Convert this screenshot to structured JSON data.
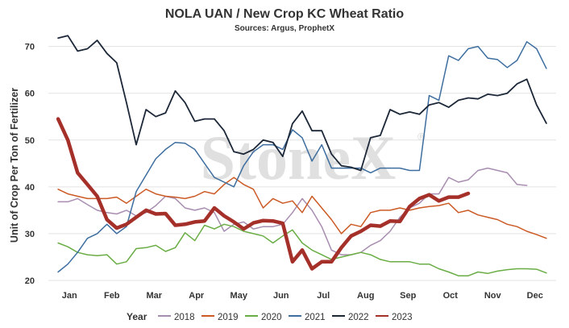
{
  "chart_data": {
    "type": "line",
    "title": "NOLA UAN / New Crop KC Wheat Ratio",
    "subtitle": "Sources: Argus, ProphetX",
    "xlabel": "",
    "ylabel": "Unit of Crop Per Ton of Fertilizer",
    "x_ticks": [
      "Jan",
      "Feb",
      "Mar",
      "Apr",
      "May",
      "Jun",
      "Jul",
      "Aug",
      "Sep",
      "Oct",
      "Nov",
      "Dec"
    ],
    "y_ticks": [
      20,
      30,
      40,
      50,
      60,
      70
    ],
    "xlim": [
      0,
      52
    ],
    "ylim": [
      20,
      72
    ],
    "grid": true,
    "legend_title": "Year",
    "legend_position": "bottom",
    "watermark": "StoneX",
    "x_unit": "week of year",
    "series": [
      {
        "name": "2018",
        "color": "#a88db0",
        "width": 1.5,
        "points": [
          [
            1,
            36.8
          ],
          [
            2,
            36.8
          ],
          [
            3,
            37.5
          ],
          [
            4,
            36.2
          ],
          [
            5,
            35.0
          ],
          [
            6,
            34.5
          ],
          [
            7,
            34.2
          ],
          [
            8,
            35.0
          ],
          [
            9,
            33.8
          ],
          [
            10,
            34.5
          ],
          [
            11,
            36.0
          ],
          [
            12,
            38.0
          ],
          [
            13,
            37.5
          ],
          [
            14,
            35.5
          ],
          [
            15,
            35.0
          ],
          [
            16,
            35.5
          ],
          [
            17,
            34.5
          ],
          [
            18,
            30.5
          ],
          [
            19,
            32.0
          ],
          [
            20,
            32.5
          ],
          [
            21,
            31.0
          ],
          [
            22,
            31.5
          ],
          [
            23,
            31.5
          ],
          [
            24,
            32.0
          ],
          [
            25,
            34.5
          ],
          [
            26,
            37.5
          ],
          [
            27,
            35.0
          ],
          [
            28,
            31.5
          ],
          [
            29,
            26.5
          ],
          [
            30,
            25.5
          ],
          [
            31,
            25.5
          ],
          [
            32,
            26.0
          ],
          [
            33,
            27.5
          ],
          [
            34,
            28.5
          ],
          [
            35,
            30.5
          ],
          [
            36,
            33.5
          ],
          [
            37,
            35.5
          ],
          [
            38,
            36.5
          ],
          [
            39,
            38.5
          ],
          [
            40,
            38.5
          ],
          [
            41,
            42.0
          ],
          [
            42,
            41.0
          ],
          [
            43,
            41.5
          ],
          [
            44,
            43.5
          ],
          [
            45,
            44.0
          ],
          [
            46,
            43.5
          ],
          [
            47,
            43.0
          ],
          [
            48,
            40.5
          ],
          [
            49,
            40.3
          ]
        ]
      },
      {
        "name": "2019",
        "color": "#cc5a25",
        "width": 1.5,
        "points": [
          [
            1,
            39.5
          ],
          [
            2,
            38.5
          ],
          [
            3,
            38.0
          ],
          [
            4,
            37.5
          ],
          [
            5,
            37.5
          ],
          [
            6,
            37.5
          ],
          [
            7,
            37.8
          ],
          [
            8,
            36.5
          ],
          [
            9,
            38.0
          ],
          [
            10,
            39.5
          ],
          [
            11,
            38.5
          ],
          [
            12,
            38.0
          ],
          [
            13,
            37.8
          ],
          [
            14,
            37.5
          ],
          [
            15,
            38.0
          ],
          [
            16,
            39.0
          ],
          [
            17,
            38.5
          ],
          [
            18,
            40.5
          ],
          [
            19,
            42.0
          ],
          [
            20,
            40.5
          ],
          [
            21,
            39.5
          ],
          [
            22,
            35.5
          ],
          [
            23,
            37.5
          ],
          [
            24,
            36.5
          ],
          [
            25,
            37.0
          ],
          [
            26,
            34.5
          ],
          [
            27,
            38.0
          ],
          [
            28,
            35.5
          ],
          [
            29,
            33.0
          ],
          [
            30,
            30.0
          ],
          [
            31,
            32.0
          ],
          [
            32,
            31.5
          ],
          [
            33,
            34.5
          ],
          [
            34,
            35.0
          ],
          [
            35,
            35.0
          ],
          [
            36,
            35.5
          ],
          [
            37,
            35.0
          ],
          [
            38,
            35.5
          ],
          [
            39,
            35.8
          ],
          [
            40,
            36.0
          ],
          [
            41,
            36.5
          ],
          [
            42,
            34.5
          ],
          [
            43,
            35.0
          ],
          [
            44,
            34.0
          ],
          [
            45,
            33.5
          ],
          [
            46,
            33.0
          ],
          [
            47,
            32.0
          ],
          [
            48,
            31.5
          ],
          [
            49,
            30.5
          ],
          [
            50,
            29.8
          ],
          [
            51,
            29.0
          ]
        ]
      },
      {
        "name": "2020",
        "color": "#6aad45",
        "width": 1.5,
        "points": [
          [
            1,
            28.0
          ],
          [
            2,
            27.2
          ],
          [
            3,
            26.0
          ],
          [
            4,
            25.5
          ],
          [
            5,
            25.3
          ],
          [
            6,
            25.5
          ],
          [
            7,
            23.5
          ],
          [
            8,
            24.0
          ],
          [
            9,
            26.8
          ],
          [
            10,
            27.0
          ],
          [
            11,
            27.5
          ],
          [
            12,
            26.2
          ],
          [
            13,
            27.0
          ],
          [
            14,
            30.2
          ],
          [
            15,
            28.5
          ],
          [
            16,
            31.8
          ],
          [
            17,
            31.0
          ],
          [
            18,
            32.0
          ],
          [
            19,
            31.5
          ],
          [
            20,
            30.5
          ],
          [
            21,
            30.0
          ],
          [
            22,
            29.5
          ],
          [
            23,
            28.0
          ],
          [
            24,
            29.5
          ],
          [
            25,
            30.8
          ],
          [
            26,
            28.0
          ],
          [
            27,
            26.5
          ],
          [
            28,
            25.5
          ],
          [
            29,
            24.5
          ],
          [
            30,
            25.0
          ],
          [
            31,
            25.5
          ],
          [
            32,
            26.0
          ],
          [
            33,
            25.5
          ],
          [
            34,
            24.5
          ],
          [
            35,
            24.0
          ],
          [
            36,
            24.0
          ],
          [
            37,
            24.0
          ],
          [
            38,
            23.5
          ],
          [
            39,
            23.5
          ],
          [
            40,
            22.5
          ],
          [
            41,
            21.8
          ],
          [
            42,
            21.0
          ],
          [
            43,
            21.0
          ],
          [
            44,
            21.8
          ],
          [
            45,
            21.5
          ],
          [
            46,
            22.0
          ],
          [
            47,
            22.3
          ],
          [
            48,
            22.5
          ],
          [
            49,
            22.5
          ],
          [
            50,
            22.4
          ],
          [
            51,
            21.6
          ]
        ]
      },
      {
        "name": "2021",
        "color": "#3e6e9f",
        "width": 1.5,
        "points": [
          [
            1,
            21.8
          ],
          [
            2,
            23.5
          ],
          [
            3,
            26.0
          ],
          [
            4,
            29.0
          ],
          [
            5,
            30.0
          ],
          [
            6,
            32.0
          ],
          [
            7,
            30.0
          ],
          [
            8,
            31.5
          ],
          [
            9,
            39.0
          ],
          [
            10,
            42.5
          ],
          [
            11,
            46.0
          ],
          [
            12,
            48.0
          ],
          [
            13,
            49.5
          ],
          [
            14,
            49.3
          ],
          [
            15,
            48.0
          ],
          [
            16,
            45.0
          ],
          [
            17,
            42.0
          ],
          [
            18,
            41.0
          ],
          [
            19,
            40.0
          ],
          [
            20,
            44.5
          ],
          [
            21,
            47.5
          ],
          [
            22,
            49.0
          ],
          [
            23,
            49.0
          ],
          [
            24,
            48.0
          ],
          [
            25,
            52.2
          ],
          [
            26,
            50.5
          ],
          [
            27,
            45.5
          ],
          [
            28,
            49.0
          ],
          [
            29,
            44.0
          ],
          [
            30,
            44.0
          ],
          [
            31,
            44.0
          ],
          [
            32,
            44.0
          ],
          [
            33,
            43.0
          ],
          [
            34,
            44.0
          ],
          [
            35,
            44.0
          ],
          [
            36,
            44.0
          ],
          [
            37,
            43.5
          ],
          [
            38,
            43.5
          ],
          [
            39,
            59.5
          ],
          [
            40,
            58.5
          ],
          [
            41,
            68.0
          ],
          [
            42,
            67.0
          ],
          [
            43,
            69.5
          ],
          [
            44,
            70.0
          ],
          [
            45,
            67.5
          ],
          [
            46,
            67.2
          ],
          [
            47,
            65.5
          ],
          [
            48,
            67.0
          ],
          [
            49,
            71.0
          ],
          [
            50,
            69.5
          ],
          [
            51,
            65.3
          ]
        ]
      },
      {
        "name": "2022",
        "color": "#1c2738",
        "width": 1.8,
        "points": [
          [
            1,
            71.8
          ],
          [
            2,
            72.3
          ],
          [
            3,
            69.0
          ],
          [
            4,
            69.5
          ],
          [
            5,
            71.3
          ],
          [
            6,
            68.5
          ],
          [
            7,
            66.5
          ],
          [
            8,
            58.0
          ],
          [
            9,
            49.0
          ],
          [
            10,
            56.5
          ],
          [
            11,
            55.0
          ],
          [
            12,
            55.8
          ],
          [
            13,
            60.5
          ],
          [
            14,
            58.0
          ],
          [
            15,
            54.0
          ],
          [
            16,
            54.5
          ],
          [
            17,
            54.5
          ],
          [
            18,
            52.0
          ],
          [
            19,
            47.5
          ],
          [
            20,
            47.0
          ],
          [
            21,
            48.0
          ],
          [
            22,
            50.0
          ],
          [
            23,
            49.5
          ],
          [
            24,
            46.5
          ],
          [
            25,
            53.5
          ],
          [
            26,
            56.2
          ],
          [
            27,
            52.0
          ],
          [
            28,
            52.0
          ],
          [
            29,
            47.0
          ],
          [
            30,
            44.5
          ],
          [
            31,
            44.2
          ],
          [
            32,
            43.5
          ],
          [
            33,
            50.5
          ],
          [
            34,
            51.0
          ],
          [
            35,
            56.5
          ],
          [
            36,
            55.5
          ],
          [
            37,
            56.0
          ],
          [
            38,
            55.5
          ],
          [
            39,
            57.5
          ],
          [
            40,
            58.0
          ],
          [
            41,
            57.0
          ],
          [
            42,
            58.5
          ],
          [
            43,
            59.0
          ],
          [
            44,
            58.8
          ],
          [
            45,
            59.8
          ],
          [
            46,
            59.5
          ],
          [
            47,
            60.0
          ],
          [
            48,
            62.0
          ],
          [
            49,
            63.0
          ],
          [
            50,
            57.5
          ],
          [
            51,
            53.6
          ]
        ]
      },
      {
        "name": "2023",
        "color": "#a5302a",
        "width": 4.5,
        "points": [
          [
            1,
            54.5
          ],
          [
            2,
            50.0
          ],
          [
            3,
            43.0
          ],
          [
            4,
            40.5
          ],
          [
            5,
            38.0
          ],
          [
            6,
            33.0
          ],
          [
            7,
            31.2
          ],
          [
            8,
            32.0
          ],
          [
            9,
            33.5
          ],
          [
            10,
            35.0
          ],
          [
            11,
            34.2
          ],
          [
            12,
            34.3
          ],
          [
            13,
            31.8
          ],
          [
            14,
            32.0
          ],
          [
            15,
            32.5
          ],
          [
            16,
            32.7
          ],
          [
            17,
            35.5
          ],
          [
            18,
            33.8
          ],
          [
            19,
            32.5
          ],
          [
            20,
            31.0
          ],
          [
            21,
            32.3
          ],
          [
            22,
            32.8
          ],
          [
            23,
            32.7
          ],
          [
            24,
            32.2
          ],
          [
            25,
            24.0
          ],
          [
            26,
            26.5
          ],
          [
            27,
            22.5
          ],
          [
            28,
            24.0
          ],
          [
            29,
            24.0
          ],
          [
            30,
            27.0
          ],
          [
            31,
            29.5
          ],
          [
            32,
            30.5
          ],
          [
            33,
            31.8
          ],
          [
            34,
            31.6
          ],
          [
            35,
            32.7
          ],
          [
            36,
            32.6
          ],
          [
            37,
            35.8
          ],
          [
            38,
            37.5
          ],
          [
            39,
            38.3
          ],
          [
            40,
            37.0
          ],
          [
            41,
            37.8
          ],
          [
            42,
            37.8
          ],
          [
            43,
            38.6
          ]
        ]
      }
    ]
  }
}
